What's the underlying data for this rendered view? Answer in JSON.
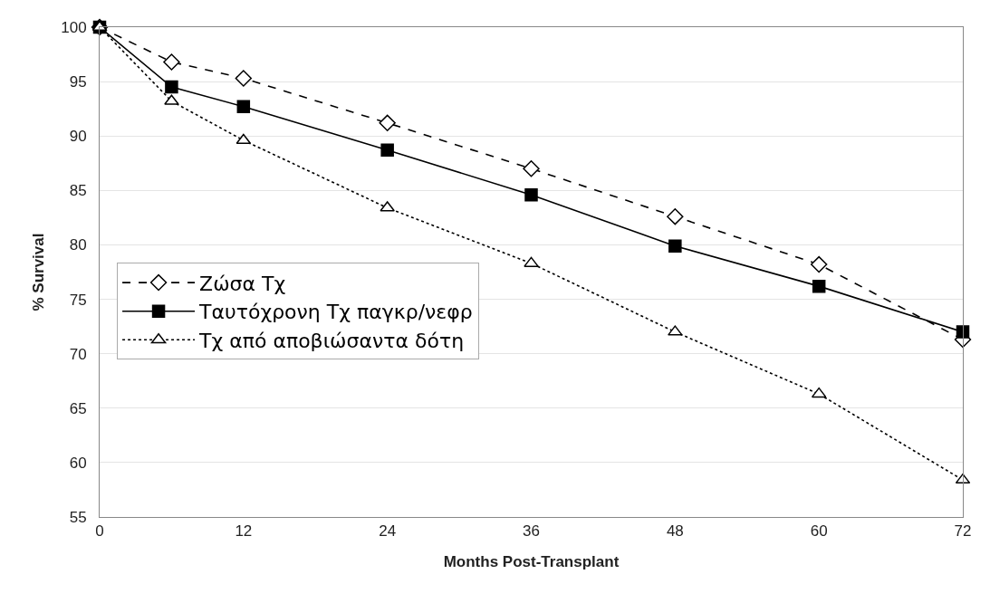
{
  "chart_data": {
    "type": "line",
    "xlabel": "Months Post-Transplant",
    "ylabel": "% Survival",
    "x": [
      0,
      6,
      12,
      24,
      36,
      48,
      60,
      72
    ],
    "series": [
      {
        "name": "Ζώσα Τχ",
        "color": "#000000",
        "marker": "diamond",
        "line_style": "dashed",
        "values": [
          100,
          96.8,
          95.3,
          91.2,
          87.0,
          82.6,
          78.2,
          71.3
        ]
      },
      {
        "name": "Ταυτόχρονη Τχ παγκρ/νεφρ",
        "color": "#000000",
        "marker": "square",
        "line_style": "solid",
        "values": [
          100,
          94.5,
          92.7,
          88.7,
          84.6,
          79.9,
          76.2,
          72.0
        ]
      },
      {
        "name": "Τχ από αποβιώσαντα δότη",
        "color": "#000000",
        "marker": "triangle",
        "line_style": "dotted",
        "values": [
          100,
          93.2,
          89.6,
          83.4,
          78.3,
          72.0,
          66.3,
          58.4
        ]
      }
    ],
    "xlim": [
      0,
      72
    ],
    "xticks": [
      0,
      12,
      24,
      36,
      48,
      60,
      72
    ],
    "ylim": [
      55,
      100
    ],
    "yticks": [
      55,
      60,
      65,
      70,
      75,
      80,
      85,
      90,
      95,
      100
    ],
    "grid": "y",
    "legend": "left"
  }
}
